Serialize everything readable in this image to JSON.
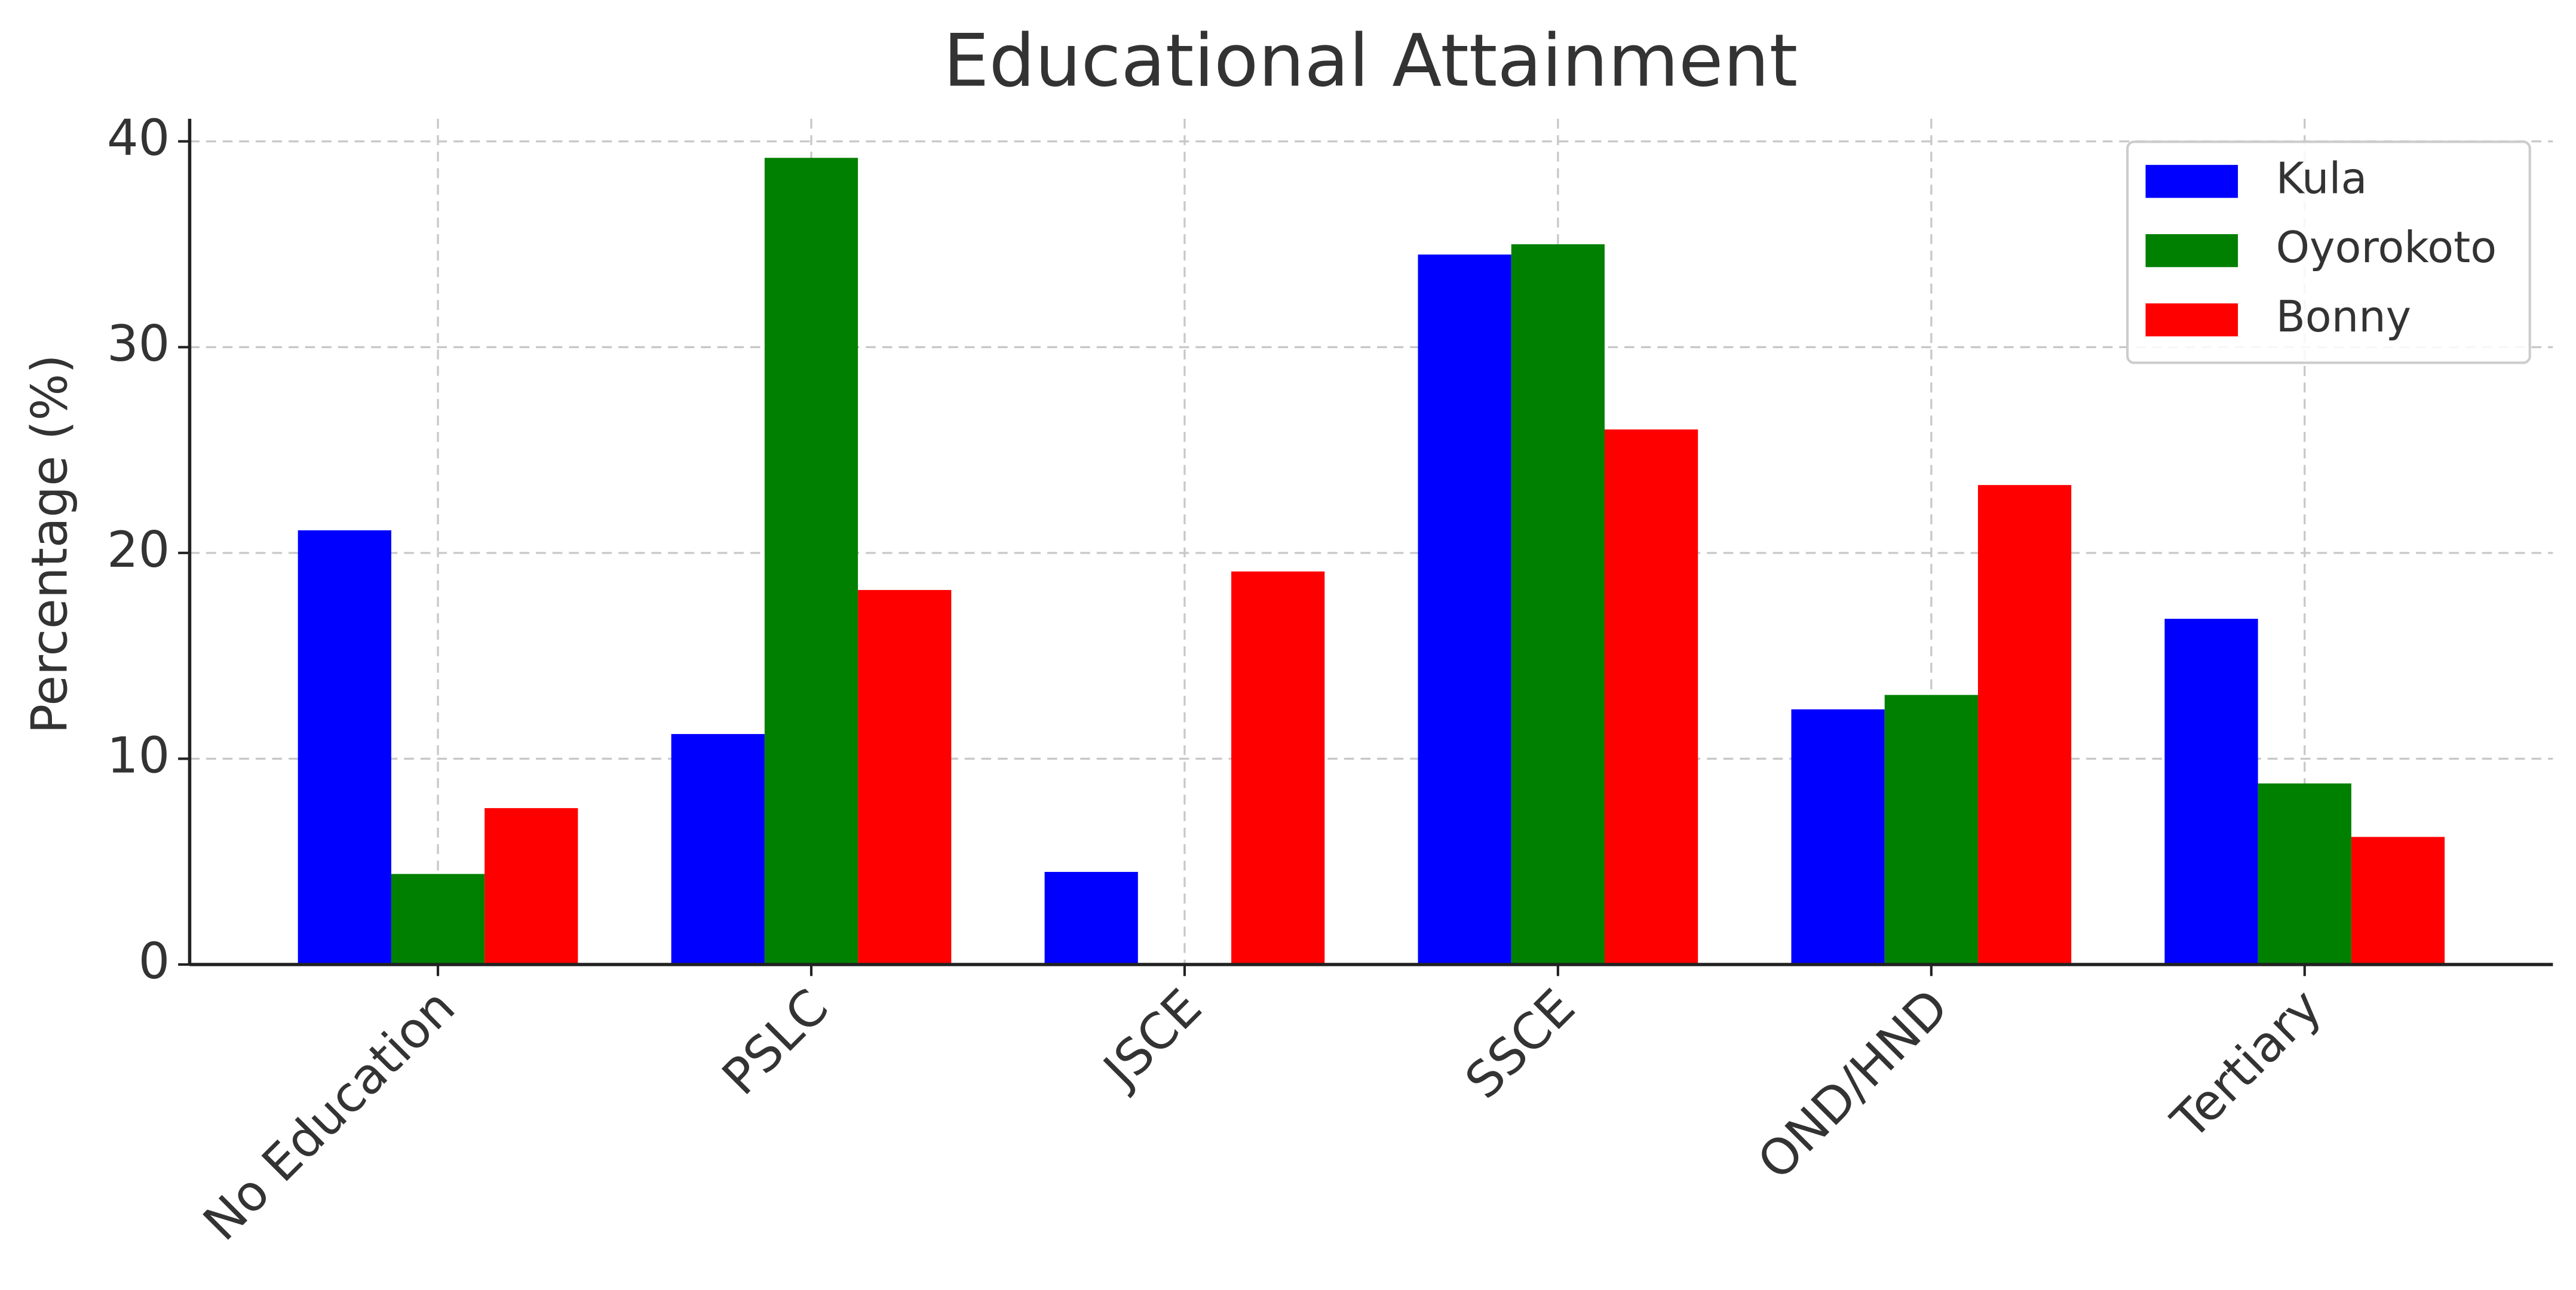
{
  "chart_data": {
    "type": "bar",
    "title": "Educational Attainment",
    "y_label": "Percentage (%)",
    "categories": [
      "No Education",
      "PSLC",
      "JSCE",
      "SSCE",
      "OND/HND",
      "Tertiary"
    ],
    "series": [
      {
        "name": "Kula",
        "color": "#0000ff",
        "values": [
          21.1,
          11.2,
          4.5,
          34.5,
          12.4,
          16.8
        ]
      },
      {
        "name": "Oyorokoto",
        "color": "#008000",
        "values": [
          4.4,
          39.2,
          0,
          35.0,
          13.1,
          8.8
        ]
      },
      {
        "name": "Bonny",
        "color": "#ff0000",
        "values": [
          7.6,
          18.2,
          19.1,
          26.0,
          23.3,
          6.2
        ]
      }
    ],
    "ylim": [
      0,
      41.1
    ],
    "yticks": [
      0,
      10,
      20,
      30,
      40
    ],
    "grid": true,
    "legend": "upper right"
  }
}
